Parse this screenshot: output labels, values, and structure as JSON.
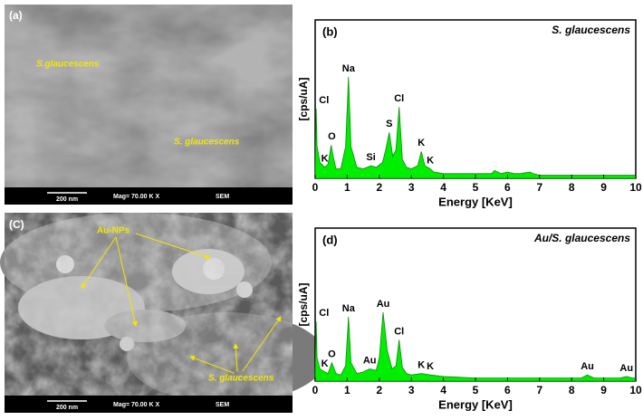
{
  "panels": [
    {
      "label": "(a)",
      "annotations": [
        "S.glaucescens",
        "S. glaucescens"
      ],
      "scale_bar": "200 nm",
      "magnification": "Mag= 70.00 K X",
      "detector": "SEM"
    },
    {
      "label": "(C)",
      "annotations": [
        "Au-NPs",
        "S. glaucescens"
      ],
      "scale_bar": "200 nm",
      "magnification": "Mag= 70.00 K X",
      "detector": "SEM"
    }
  ],
  "chart_data": [
    {
      "type": "area",
      "panel_label": "(b)",
      "title": "S. glaucescens",
      "xlabel": "Energy [KeV]",
      "ylabel": "[cps/uA]",
      "color": "#00ee00",
      "line_color": "#118811",
      "xlim": [
        0,
        10
      ],
      "xticks": [
        0,
        1,
        2,
        3,
        4,
        5,
        6,
        7,
        8,
        9,
        10
      ],
      "ylim": [
        0,
        100
      ],
      "x": [
        0,
        0.03,
        0.06,
        0.15,
        0.3,
        0.4,
        0.5,
        0.55,
        0.65,
        0.8,
        0.95,
        1.04,
        1.12,
        1.3,
        1.5,
        1.74,
        1.9,
        2.1,
        2.2,
        2.31,
        2.42,
        2.52,
        2.62,
        2.72,
        2.85,
        3.0,
        3.2,
        3.31,
        3.42,
        3.59,
        3.7,
        4.0,
        4.5,
        5.0,
        5.5,
        5.6,
        5.8,
        6.0,
        6.2,
        6.4,
        6.7,
        6.8,
        7.0,
        7.5,
        8,
        9,
        10
      ],
      "values": [
        2,
        44,
        20,
        10,
        7,
        9,
        21,
        15,
        6,
        6,
        20,
        64,
        20,
        7,
        6,
        8,
        7,
        10,
        18,
        29,
        14,
        18,
        45,
        12,
        7,
        6,
        8,
        17,
        8,
        6,
        4,
        3,
        3,
        3,
        3,
        5,
        3,
        4,
        3,
        3,
        4,
        3,
        2,
        2,
        2,
        2,
        2
      ],
      "peak_labels": [
        {
          "text": "Cl",
          "x": 0.05
        },
        {
          "text": "K",
          "x": 0.3
        },
        {
          "text": "O",
          "x": 0.52
        },
        {
          "text": "Na",
          "x": 1.04
        },
        {
          "text": "Si",
          "x": 1.74
        },
        {
          "text": "S",
          "x": 2.31
        },
        {
          "text": "Cl",
          "x": 2.62
        },
        {
          "text": "K",
          "x": 3.31
        },
        {
          "text": "K",
          "x": 3.59
        }
      ]
    },
    {
      "type": "area",
      "panel_label": "(d)",
      "title": "Au/S. glaucescens",
      "xlabel": "Energy [KeV]",
      "ylabel": "[cps/uA]",
      "color": "#00ee00",
      "line_color": "#118811",
      "xlim": [
        0,
        10
      ],
      "xticks": [
        0,
        1,
        2,
        3,
        4,
        5,
        6,
        7,
        8,
        9,
        10
      ],
      "ylim": [
        0,
        100
      ],
      "x": [
        0,
        0.03,
        0.06,
        0.15,
        0.3,
        0.4,
        0.52,
        0.65,
        0.8,
        0.95,
        1.04,
        1.12,
        1.3,
        1.5,
        1.7,
        1.9,
        2.0,
        2.12,
        2.25,
        2.4,
        2.52,
        2.62,
        2.72,
        2.85,
        3.0,
        3.31,
        3.59,
        4,
        5,
        6,
        7,
        8,
        8.3,
        8.49,
        8.7,
        9,
        9.5,
        9.71,
        9.9,
        10
      ],
      "values": [
        2,
        39,
        15,
        8,
        6,
        5,
        12,
        5,
        4,
        10,
        42,
        12,
        5,
        6,
        8,
        7,
        15,
        45,
        20,
        8,
        10,
        27,
        9,
        5,
        4,
        5,
        4,
        3,
        2,
        2,
        2,
        2,
        2,
        4,
        2,
        2,
        2,
        3,
        2,
        2
      ],
      "peak_labels": [
        {
          "text": "Cl",
          "x": 0.05
        },
        {
          "text": "K",
          "x": 0.3
        },
        {
          "text": "O",
          "x": 0.52
        },
        {
          "text": "Na",
          "x": 1.04
        },
        {
          "text": "Au",
          "x": 1.7
        },
        {
          "text": "Au",
          "x": 2.12
        },
        {
          "text": "Cl",
          "x": 2.62
        },
        {
          "text": "K",
          "x": 3.31
        },
        {
          "text": "K",
          "x": 3.59
        },
        {
          "text": "Au",
          "x": 8.49
        },
        {
          "text": "Au",
          "x": 9.71
        }
      ]
    }
  ]
}
